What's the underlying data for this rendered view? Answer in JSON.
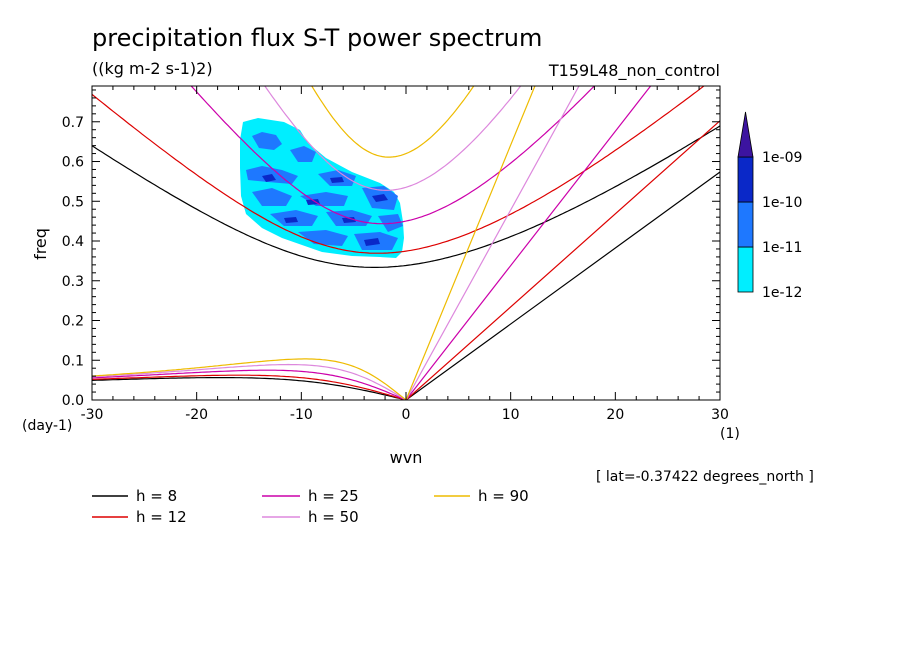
{
  "chart_data": {
    "type": "line",
    "title": "precipitation flux S-T power spectrum",
    "units": "((kg m-2 s-1)2)",
    "run_label": "T159L48_non_control",
    "xlabel": "wvn",
    "ylabel": "freq",
    "x_unit": "(1)",
    "y_unit": "(day-1)",
    "xlim": [
      -30,
      30
    ],
    "ylim": [
      0,
      0.79
    ],
    "x_ticks": [
      -30,
      -20,
      -10,
      0,
      10,
      20,
      30
    ],
    "x_tick_labels": [
      "-30",
      "-20",
      "-10",
      "0",
      "10",
      "20",
      "30"
    ],
    "y_ticks": [
      0.0,
      0.1,
      0.2,
      0.3,
      0.4,
      0.5,
      0.6,
      0.7
    ],
    "y_tick_labels": [
      "0.0",
      "0.1",
      "0.2",
      "0.3",
      "0.4",
      "0.5",
      "0.6",
      "0.7"
    ],
    "annotation": "[ lat=-0.37422 degrees_north ]",
    "series": [
      {
        "name": "h = 8",
        "h": 8,
        "color": "#000000"
      },
      {
        "name": "h = 12",
        "h": 12,
        "color": "#dd0000"
      },
      {
        "name": "h = 25",
        "h": 25,
        "color": "#cc00aa"
      },
      {
        "name": "h = 50",
        "h": 50,
        "color": "#dd88dd"
      },
      {
        "name": "h = 90",
        "h": 90,
        "color": "#eebb00"
      }
    ],
    "legend": [
      {
        "label": "h =  8",
        "color": "#000000"
      },
      {
        "label": "h = 12",
        "color": "#dd0000"
      },
      {
        "label": "h = 25",
        "color": "#cc00aa"
      },
      {
        "label": "h = 50",
        "color": "#dd88dd"
      },
      {
        "label": "h = 90",
        "color": "#eebb00"
      }
    ],
    "colorbar": {
      "levels": [
        "1e-12",
        "1e-11",
        "1e-10",
        "1e-09"
      ],
      "colors": [
        "#00eeff",
        "#1e78ff",
        "#0a28c8",
        "#3c14a0"
      ]
    },
    "shaded_region": {
      "wvn_range": [
        -16,
        0
      ],
      "freq_range": [
        0.37,
        0.71
      ],
      "levels_present": [
        "1e-12",
        "1e-11",
        "1e-10"
      ]
    }
  }
}
